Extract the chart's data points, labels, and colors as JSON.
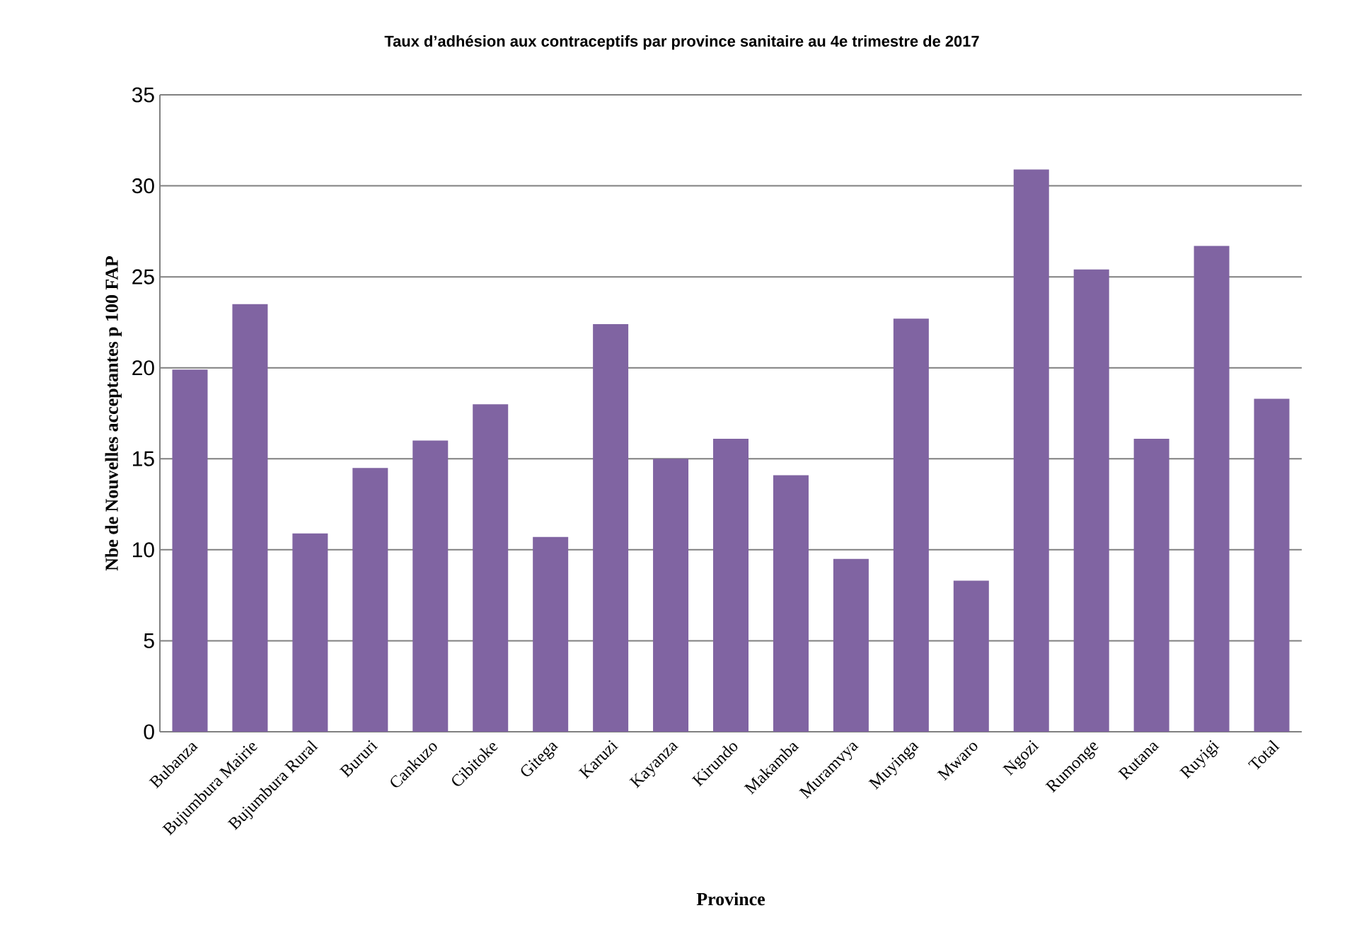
{
  "chart_data": {
    "type": "bar",
    "title": "Taux d’adhésion aux contraceptifs par province sanitaire au 4e trimestre de 2017",
    "xlabel": "Province",
    "ylabel": "Nbe de Nouvelles acceptantes p 100 FAP",
    "categories": [
      "Bubanza",
      "Bujumbura Mairie",
      "Bujumbura Rural",
      "Bururi",
      "Cankuzo",
      "Cibitoke",
      "Gitega",
      "Karuzi",
      "Kayanza",
      "Kirundo",
      "Makamba",
      "Muramvya",
      "Muyinga",
      "Mwaro",
      "Ngozi",
      "Rumonge",
      "Rutana",
      "Ruyigi",
      "Total"
    ],
    "values": [
      19.9,
      23.5,
      10.9,
      14.5,
      16.0,
      18.0,
      10.7,
      22.4,
      15.0,
      16.1,
      14.1,
      9.5,
      22.7,
      8.3,
      30.9,
      25.4,
      16.1,
      26.7,
      18.3
    ],
    "color": "#8064a2",
    "ylim": [
      0,
      35
    ],
    "yticks": [
      0,
      5,
      10,
      15,
      20,
      25,
      30,
      35
    ],
    "grid": "y"
  }
}
